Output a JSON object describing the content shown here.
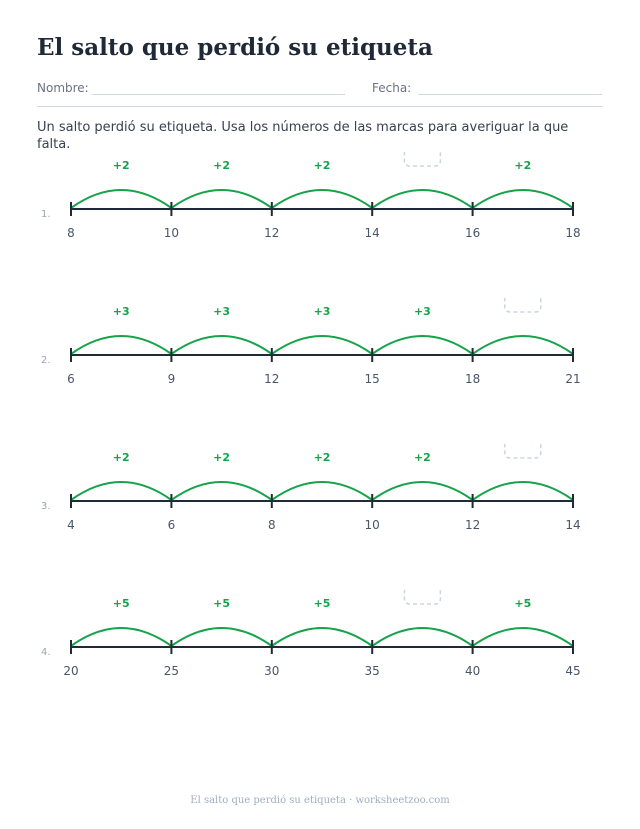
{
  "title": "El salto que perdió su etiqueta",
  "header": {
    "name_label": "Nombre:",
    "date_label": "Fecha:"
  },
  "instructions": "Un salto perdió su etiqueta. Usa los números de las marcas para averiguar la que falta.",
  "problems": [
    {
      "number": "1.",
      "ticks": [
        "8",
        "10",
        "12",
        "14",
        "16",
        "18"
      ],
      "jumps": [
        "+2",
        "+2",
        "+2",
        "",
        "+2"
      ],
      "missing_index": 3
    },
    {
      "number": "2.",
      "ticks": [
        "6",
        "9",
        "12",
        "15",
        "18",
        "21"
      ],
      "jumps": [
        "+3",
        "+3",
        "+3",
        "+3",
        ""
      ],
      "missing_index": 4
    },
    {
      "number": "3.",
      "ticks": [
        "4",
        "6",
        "8",
        "10",
        "12",
        "14"
      ],
      "jumps": [
        "+2",
        "+2",
        "+2",
        "+2",
        ""
      ],
      "missing_index": 4
    },
    {
      "number": "4.",
      "ticks": [
        "20",
        "25",
        "30",
        "35",
        "40",
        "45"
      ],
      "jumps": [
        "+5",
        "+5",
        "+5",
        "",
        "+5"
      ],
      "missing_index": 3
    }
  ],
  "footer": "El salto que perdió su etiqueta · worksheetzoo.com",
  "colors": {
    "arc": "#16a34a",
    "axis": "#1f2937",
    "tick_label": "#4a5568",
    "blank_box": "#cbd5e0"
  }
}
